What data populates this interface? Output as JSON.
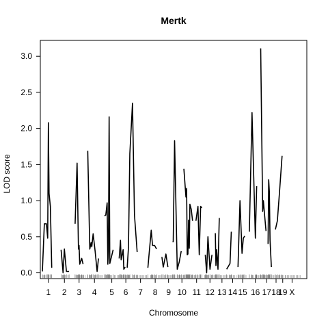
{
  "chart_data": {
    "type": "line",
    "title": "Mertk",
    "xlabel": "Chromosome",
    "ylabel": "LOD score",
    "ylim": [
      -0.08,
      3.22
    ],
    "yticks": [
      0.0,
      0.5,
      1.0,
      1.5,
      2.0,
      2.5,
      3.0
    ],
    "ytick_labels": [
      "0.0",
      "0.5",
      "1.0",
      "1.5",
      "2.0",
      "2.5",
      "3.0"
    ],
    "xlim": [
      0,
      393
    ],
    "grid": false,
    "legend": "none",
    "chromosomes": [
      {
        "label": "1",
        "start": 0,
        "end": 14,
        "mid": 9
      },
      {
        "label": "2",
        "start": 28,
        "end": 40,
        "mid": 33
      },
      {
        "label": "3",
        "start": 49,
        "end": 64,
        "mid": 55
      },
      {
        "label": "4",
        "start": 68,
        "end": 90,
        "mid": 78
      },
      {
        "label": "5",
        "start": 96,
        "end": 114,
        "mid": 104
      },
      {
        "label": "6",
        "start": 115,
        "end": 130,
        "mid": 125
      },
      {
        "label": "7",
        "start": 135,
        "end": 158,
        "mid": 147
      },
      {
        "label": "8",
        "start": 162,
        "end": 177,
        "mid": 169
      },
      {
        "label": "9",
        "start": 181,
        "end": 196,
        "mid": 189
      },
      {
        "label": "10",
        "start": 200,
        "end": 217,
        "mid": 209
      },
      {
        "label": "11",
        "start": 224,
        "end": 237,
        "mid": 231
      },
      {
        "label": "12",
        "start": 243,
        "end": 257,
        "mid": 251
      },
      {
        "label": "13",
        "start": 263,
        "end": 276,
        "mid": 269
      },
      {
        "label": "14",
        "start": 278,
        "end": 290,
        "mid": 285
      },
      {
        "label": "15",
        "start": 294,
        "end": 305,
        "mid": 300
      },
      {
        "label": "16",
        "start": 313,
        "end": 328,
        "mid": 319
      },
      {
        "label": "17",
        "start": 330,
        "end": 341,
        "mid": 336
      },
      {
        "label": "18",
        "start": 345,
        "end": 354,
        "mid": 350
      },
      {
        "label": "19",
        "start": 356,
        "end": 364,
        "mid": 360
      },
      {
        "label": "X",
        "start": 365,
        "end": 386,
        "mid": 374
      }
    ],
    "series": [
      {
        "segments": [
          [
            [
              0,
              0.02
            ],
            [
              3,
              0.68
            ],
            [
              6,
              0.68
            ],
            [
              8,
              0.48
            ],
            [
              9,
              2.08
            ],
            [
              10,
              1.1
            ],
            [
              12,
              0.92
            ],
            [
              14,
              0.07
            ]
          ],
          [
            [
              28,
              0.32
            ],
            [
              31,
              0.0
            ],
            [
              33,
              0.33
            ],
            [
              36,
              0.02
            ],
            [
              40,
              0.02
            ]
          ],
          [
            [
              49,
              0.68
            ],
            [
              52,
              1.52
            ],
            [
              54,
              0.33
            ],
            [
              55,
              0.38
            ],
            [
              56,
              0.12
            ],
            [
              59,
              0.2
            ],
            [
              61,
              0.12
            ]
          ],
          [
            [
              68,
              1.69
            ],
            [
              71,
              0.33
            ],
            [
              73,
              0.42
            ],
            [
              74,
              0.36
            ],
            [
              76,
              0.54
            ],
            [
              79,
              0.3
            ],
            [
              82,
              0.02
            ],
            [
              84,
              0.2
            ]
          ],
          [
            [
              93,
              0.79
            ],
            [
              95,
              0.8
            ],
            [
              97,
              0.97
            ],
            [
              98,
              0.12
            ],
            [
              99,
              0.3
            ],
            [
              100,
              2.16
            ],
            [
              101,
              0.13
            ],
            [
              106,
              0.32
            ]
          ],
          [
            [
              115,
              0.2
            ],
            [
              117,
              0.45
            ],
            [
              118,
              0.18
            ],
            [
              121,
              0.32
            ],
            [
              122,
              0.05
            ],
            [
              124,
              0.08
            ]
          ],
          [
            [
              127,
              0.07
            ],
            [
              129,
              0.35
            ],
            [
              131,
              1.65
            ],
            [
              135,
              2.35
            ],
            [
              138,
              0.8
            ],
            [
              142,
              0.29
            ]
          ],
          [
            [
              158,
              0.07
            ],
            [
              163,
              0.59
            ],
            [
              165,
              0.38
            ],
            [
              168,
              0.38
            ],
            [
              171,
              0.33
            ]
          ],
          [
            [
              179,
              0.22
            ],
            [
              181,
              0.08
            ],
            [
              185,
              0.26
            ],
            [
              188,
              0.08
            ]
          ],
          [
            [
              195,
              0.43
            ],
            [
              196,
              0.43
            ],
            [
              198,
              1.83
            ],
            [
              202,
              0.05
            ],
            [
              205,
              0.15
            ],
            [
              208,
              0.3
            ]
          ],
          [
            [
              212,
              1.44
            ],
            [
              215,
              1.05
            ],
            [
              216,
              1.17
            ],
            [
              217,
              0.25
            ],
            [
              218,
              0.26
            ],
            [
              219,
              0.73
            ],
            [
              220,
              0.34
            ],
            [
              221,
              0.95
            ],
            [
              223,
              0.88
            ],
            [
              225,
              0.72
            ]
          ],
          [
            [
              230,
              0.72
            ],
            [
              233,
              0.92
            ],
            [
              235,
              0.25
            ],
            [
              237,
              0.92
            ],
            [
              239,
              0.9
            ]
          ],
          [
            [
              244,
              0.25
            ],
            [
              246,
              0.0
            ],
            [
              248,
              0.5
            ],
            [
              251,
              0.05
            ],
            [
              254,
              0.25
            ]
          ],
          [
            [
              259,
              0.55
            ],
            [
              260,
              0.1
            ],
            [
              261,
              0.32
            ],
            [
              263,
              0.05
            ],
            [
              265,
              0.76
            ]
          ],
          [
            [
              276,
              0.05
            ],
            [
              281,
              0.13
            ],
            [
              283,
              0.57
            ]
          ],
          [
            [
              293,
              0.08
            ],
            [
              296,
              1.0
            ],
            [
              299,
              0.27
            ],
            [
              301,
              0.48
            ],
            [
              303,
              0.51
            ]
          ],
          [
            [
              310,
              0.57
            ],
            [
              314,
              2.22
            ],
            [
              319,
              0.48
            ],
            [
              321,
              1.2
            ]
          ],
          [
            [
              327,
              3.11
            ],
            [
              330,
              0.85
            ],
            [
              331,
              1.0
            ],
            [
              333,
              0.78
            ],
            [
              335,
              0.58
            ]
          ],
          [
            [
              338,
              0.4
            ],
            [
              339,
              1.29
            ],
            [
              340,
              1.12
            ],
            [
              341,
              0.45
            ],
            [
              343,
              0.08
            ]
          ],
          [
            [
              349,
              0.6
            ],
            [
              352,
              0.72
            ],
            [
              355,
              1.1
            ],
            [
              359,
              1.62
            ]
          ]
        ]
      }
    ]
  }
}
